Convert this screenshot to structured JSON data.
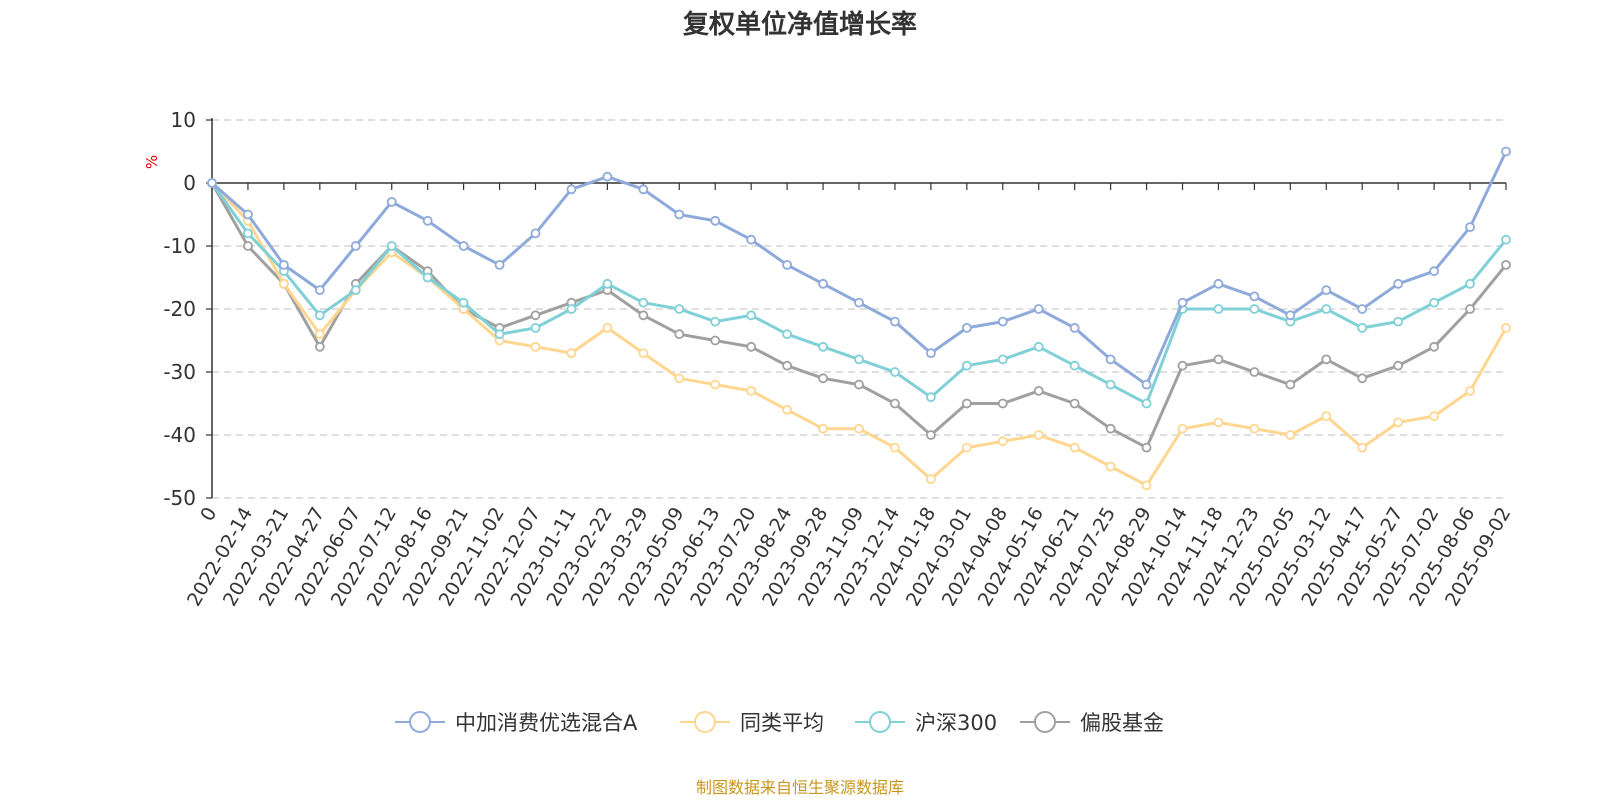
{
  "chart_data": {
    "type": "line",
    "title": "复权单位净值增长率",
    "ylabel": "%",
    "ylim": [
      -50,
      10
    ],
    "yticks": [
      10,
      0,
      -10,
      -20,
      -30,
      -40,
      -50
    ],
    "categories": [
      "0",
      "2022-02-14",
      "2022-03-21",
      "2022-04-27",
      "2022-06-07",
      "2022-07-12",
      "2022-08-16",
      "2022-09-21",
      "2022-11-02",
      "2022-12-07",
      "2023-01-11",
      "2023-02-22",
      "2023-03-29",
      "2023-05-09",
      "2023-06-13",
      "2023-07-20",
      "2023-08-24",
      "2023-09-28",
      "2023-11-09",
      "2023-12-14",
      "2024-01-18",
      "2024-03-01",
      "2024-04-08",
      "2024-05-16",
      "2024-06-21",
      "2024-07-25",
      "2024-08-29",
      "2024-10-14",
      "2024-11-18",
      "2024-12-23",
      "2025-02-05",
      "2025-03-12",
      "2025-04-17",
      "2025-05-27",
      "2025-07-02",
      "2025-08-06",
      "2025-09-02"
    ],
    "grid": true,
    "legend_position": "bottom",
    "series": [
      {
        "name": "中加消费优选混合A",
        "color": "#8eaadb",
        "values": [
          0,
          -5,
          -13,
          -17,
          -10,
          -3,
          -6,
          -10,
          -13,
          -8,
          -1,
          1,
          -1,
          -5,
          -6,
          -9,
          -13,
          -16,
          -19,
          -22,
          -27,
          -23,
          -22,
          -20,
          -23,
          -28,
          -32,
          -19,
          -16,
          -18,
          -21,
          -17,
          -20,
          -16,
          -14,
          -7,
          5
        ]
      },
      {
        "name": "同类平均",
        "color": "#ffd68f",
        "values": [
          0,
          -6,
          -16,
          -24,
          -17,
          -11,
          -15,
          -20,
          -25,
          -26,
          -27,
          -23,
          -27,
          -31,
          -32,
          -33,
          -36,
          -39,
          -39,
          -42,
          -47,
          -42,
          -41,
          -40,
          -42,
          -45,
          -48,
          -39,
          -38,
          -39,
          -40,
          -37,
          -42,
          -38,
          -37,
          -33,
          -23
        ]
      },
      {
        "name": "沪深300",
        "color": "#80d0d8",
        "values": [
          0,
          -8,
          -14,
          -21,
          -17,
          -10,
          -15,
          -19,
          -24,
          -23,
          -20,
          -16,
          -19,
          -20,
          -22,
          -21,
          -24,
          -26,
          -28,
          -30,
          -34,
          -29,
          -28,
          -26,
          -29,
          -32,
          -35,
          -20,
          -20,
          -20,
          -22,
          -20,
          -23,
          -22,
          -19,
          -16,
          -9
        ]
      },
      {
        "name": "偏股基金",
        "color": "#a0a0a0",
        "values": [
          0,
          -10,
          -16,
          -26,
          -16,
          -10,
          -14,
          -20,
          -23,
          -21,
          -19,
          -17,
          -21,
          -24,
          -25,
          -26,
          -29,
          -31,
          -32,
          -35,
          -40,
          -35,
          -35,
          -33,
          -35,
          -39,
          -42,
          -29,
          -28,
          -30,
          -32,
          -28,
          -31,
          -29,
          -26,
          -20,
          -13
        ]
      }
    ]
  },
  "source_note": "制图数据来自恒生聚源数据库"
}
